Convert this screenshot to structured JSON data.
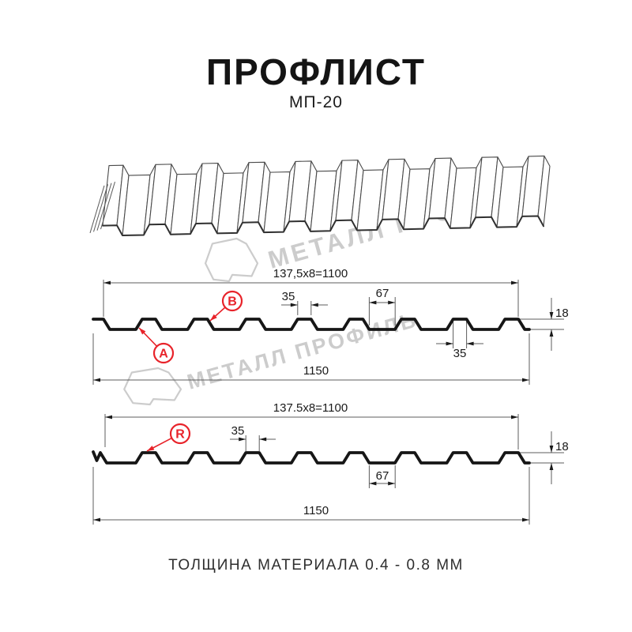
{
  "header": {
    "title": "ПРОФЛИСТ",
    "subtitle": "МП-20"
  },
  "watermark": {
    "brand": "МЕТАЛЛ ПРОФИЛЬ"
  },
  "sections": [
    {
      "id": "front-side-section",
      "markers": [
        "A",
        "B"
      ],
      "dims": {
        "working_width": "137,5x8=1100",
        "crest_top": "35",
        "valley": "67",
        "height": "18",
        "crest_bottom": "35",
        "total_width": "1150"
      }
    },
    {
      "id": "reverse-side-section",
      "markers": [
        "R"
      ],
      "dims": {
        "working_width": "137.5x8=1100",
        "crest_top": "35",
        "valley": "67",
        "height": "18",
        "total_width": "1150"
      }
    }
  ],
  "footer": {
    "note": "ТОЛЩИНА МАТЕРИАЛА 0.4 - 0.8 ММ"
  },
  "colors": {
    "accent": "#e8232a",
    "watermark": "#cccccc",
    "sketch_line": "#4a4a4a",
    "dim_line": "#5c5c5c",
    "dim_text": "#1a1a1a",
    "profile": "#161616"
  }
}
